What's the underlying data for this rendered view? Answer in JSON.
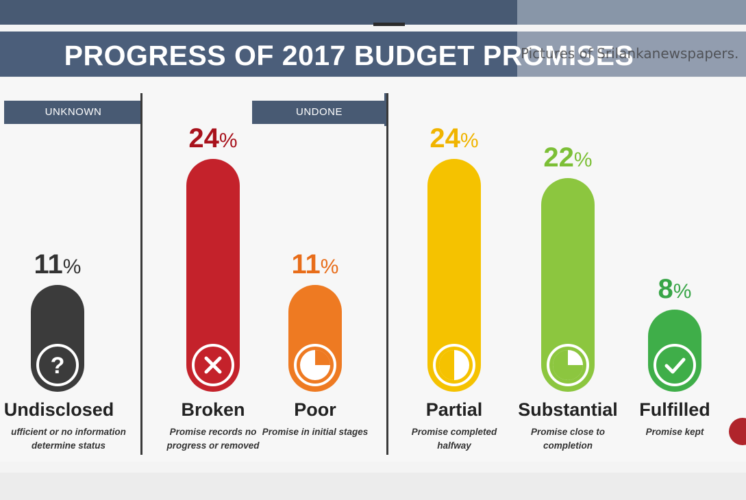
{
  "title": "PROGRESS OF 2017 BUDGET PROMISES",
  "watermark": "Pictures of Srilankanewspapers.",
  "groups": {
    "unknown": "UNKNOWN",
    "undone": "UNDONE"
  },
  "chart_data": {
    "type": "bar",
    "unit": "%",
    "categories": [
      "Undisclosed",
      "Broken",
      "Poor",
      "Partial",
      "Substantial",
      "Fulfilled"
    ],
    "values": [
      11,
      24,
      11,
      24,
      22,
      8
    ],
    "labels": [
      "11",
      "24",
      "11",
      "24",
      "22",
      "8"
    ],
    "descriptions": [
      "ufficient or no information determine status",
      "Promise records no progress or removed",
      "Promise in initial stages",
      "Promise completed halfway",
      "Promise close to completion",
      "Promise kept"
    ],
    "colors": [
      "#3b3b3b",
      "#c4222b",
      "#ee7a22",
      "#f5c200",
      "#8cc63f",
      "#3fae49"
    ],
    "label_colors": [
      "#333333",
      "#a8121c",
      "#e86d1a",
      "#f0b400",
      "#7cbf36",
      "#38a547"
    ],
    "icons": [
      "question-icon",
      "cross-icon",
      "quarter-pie-icon",
      "half-pie-icon",
      "three-quarter-pie-icon",
      "check-icon"
    ],
    "ylim": [
      0,
      24
    ]
  }
}
